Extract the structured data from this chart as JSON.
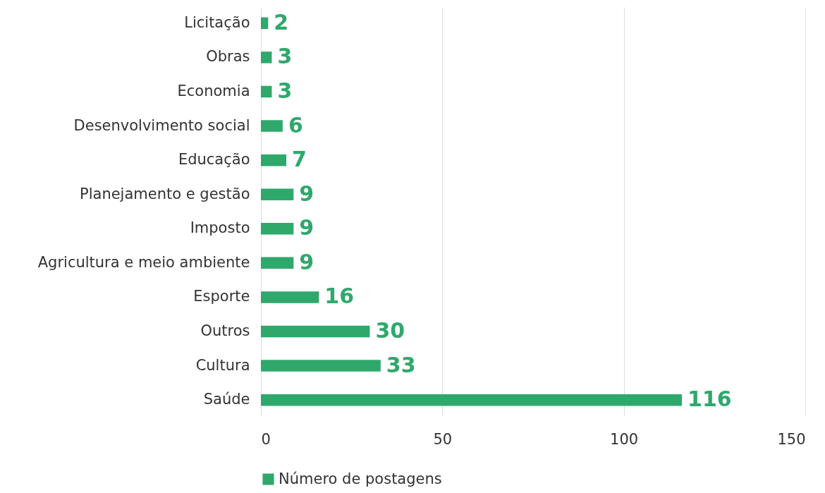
{
  "chart_data": {
    "type": "bar",
    "orientation": "horizontal",
    "categories": [
      "Licitação",
      "Obras",
      "Economia",
      "Desenvolvimento social",
      "Educação",
      "Planejamento e gestão",
      "Imposto",
      "Agricultura e meio ambiente",
      "Esporte",
      "Outros",
      "Cultura",
      "Saúde"
    ],
    "series": [
      {
        "name": "Número de postagens",
        "color": "#2fa86c",
        "values": [
          2,
          3,
          3,
          6,
          7,
          9,
          9,
          9,
          16,
          30,
          33,
          116
        ]
      }
    ],
    "xlim": [
      0,
      150
    ],
    "xticks": [
      0,
      50,
      100,
      150
    ],
    "grid": "x",
    "legend": "bottom",
    "data_labels": true
  }
}
